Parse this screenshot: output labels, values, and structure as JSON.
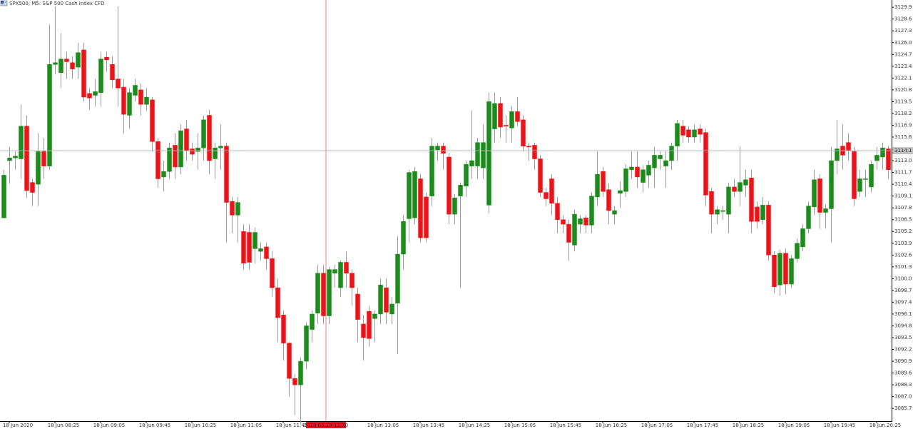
{
  "chart_data": {
    "type": "candlestick",
    "title": "SPX500, M5:  S&P 500 Cash Index CFD",
    "up_color": "#1e8a1e",
    "down_color": "#e8161b",
    "ylim": [
      3084.3,
      3130.7
    ],
    "yticks": [
      3129.9,
      3128.6,
      3127.3,
      {
        "value": 3126,
        "label": "3126.0"
      },
      3124.7,
      3123.4,
      3122.1,
      3120.8,
      3119.5,
      3118.2,
      3116.9,
      3115.6,
      {
        "value": 3113,
        "label": "3113.0"
      },
      3111.7,
      3110.4,
      3109.1,
      3107.8,
      3106.5,
      3105.2,
      3103.9,
      3102.6,
      3101.3,
      {
        "value": 3100,
        "label": "3100.0"
      },
      3098.7,
      3097.4,
      3096.1,
      3094.8,
      3093.5,
      3092.2,
      3090.9,
      3089.6,
      3088.3,
      {
        "value": 3087,
        "label": "3087.0"
      },
      3085.7
    ],
    "xticks": [
      {
        "value": 1,
        "label": "18 Jun 2020"
      },
      {
        "value": 9,
        "label": "18 Jun 08:25"
      },
      {
        "value": 17,
        "label": "18 Jun 09:05"
      },
      {
        "value": 25,
        "label": "18 Jun 09:45"
      },
      {
        "value": 33,
        "label": "18 Jun 10:25"
      },
      {
        "value": 41,
        "label": "18 Jun 11:05"
      },
      {
        "value": 49,
        "label": "18 Jun 11:45"
      },
      {
        "value": 65,
        "label": "18 Jun 13:05"
      },
      {
        "value": 73,
        "label": "18 Jun 13:45"
      },
      {
        "value": 81,
        "label": "18 Jun 14:25"
      },
      {
        "value": 89,
        "label": "18 Jun 15:05"
      },
      {
        "value": 97,
        "label": "18 Jun 15:45"
      },
      {
        "value": 105,
        "label": "18 Jun 16:25"
      },
      {
        "value": 113,
        "label": "18 Jun 17:05"
      },
      {
        "value": 121,
        "label": "18 Jun 17:45"
      },
      {
        "value": 129,
        "label": "18 Jun 18:25"
      },
      {
        "value": 137,
        "label": "18 Jun 19:05"
      },
      {
        "value": 145,
        "label": "18 Jun 19:45"
      },
      {
        "value": 153,
        "label": "18 Jun 20:25"
      }
    ],
    "current_price": 3114.1,
    "crosshair": {
      "value": 56.5,
      "label": "2020.06.18 12:20"
    },
    "ohlc": [
      [
        3106.7,
        3112.0,
        3106.7,
        3111.4
      ],
      [
        3113.0,
        3114.5,
        3110.5,
        3113.3
      ],
      [
        3113.3,
        3114.0,
        3112.0,
        3113.5
      ],
      [
        3113.2,
        3119.2,
        3111.0,
        3116.8
      ],
      [
        3116.8,
        3118.0,
        3108.9,
        3109.7
      ],
      [
        3110.6,
        3111.0,
        3108.0,
        3109.5
      ],
      [
        3110.4,
        3116.0,
        3108.0,
        3114.0
      ],
      [
        3114.0,
        3115.5,
        3111.0,
        3112.4
      ],
      [
        3112.4,
        3128.0,
        3112.0,
        3123.6
      ],
      [
        3123.6,
        3130.0,
        3122.5,
        3123.8
      ],
      [
        3122.7,
        3127.0,
        3121.0,
        3124.2
      ],
      [
        3124.2,
        3125.0,
        3122.0,
        3123.9
      ],
      [
        3123.8,
        3124.5,
        3122.0,
        3123.1
      ],
      [
        3123.3,
        3126.0,
        3122.0,
        3124.9
      ],
      [
        3125.2,
        3126.0,
        3119.5,
        3120.0
      ],
      [
        3120.4,
        3121.0,
        3118.6,
        3119.9
      ],
      [
        3120.2,
        3122.0,
        3119.0,
        3120.6
      ],
      [
        3120.5,
        3125.0,
        3119.0,
        3124.2
      ],
      [
        3124.4,
        3125.0,
        3122.8,
        3124.1
      ],
      [
        3123.6,
        3124.5,
        3121.0,
        3121.9
      ],
      [
        3122.0,
        3130.0,
        3119.0,
        3121.0
      ],
      [
        3121.1,
        3122.0,
        3116.0,
        3118.1
      ],
      [
        3118.0,
        3121.0,
        3116.5,
        3120.5
      ],
      [
        3120.2,
        3122.0,
        3119.5,
        3121.3
      ],
      [
        3120.8,
        3121.5,
        3118.0,
        3119.2
      ],
      [
        3119.2,
        3121.0,
        3118.5,
        3120.0
      ],
      [
        3119.7,
        3120.0,
        3114.0,
        3115.1
      ],
      [
        3115.1,
        3115.5,
        3110.0,
        3111.0
      ],
      [
        3111.2,
        3113.0,
        3109.6,
        3111.8
      ],
      [
        3111.8,
        3115.0,
        3111.0,
        3114.4
      ],
      [
        3114.7,
        3116.0,
        3111.0,
        3112.3
      ],
      [
        3112.3,
        3117.0,
        3111.5,
        3116.3
      ],
      [
        3116.5,
        3117.5,
        3113.0,
        3114.1
      ],
      [
        3114.3,
        3115.0,
        3113.0,
        3113.7
      ],
      [
        3114.0,
        3116.0,
        3112.0,
        3114.4
      ],
      [
        3114.4,
        3118.0,
        3113.0,
        3117.5
      ],
      [
        3118.0,
        3118.6,
        3111.5,
        3113.0
      ],
      [
        3113.2,
        3115.0,
        3111.0,
        3114.4
      ],
      [
        3114.4,
        3117.0,
        3112.0,
        3114.6
      ],
      [
        3114.6,
        3115.0,
        3104.0,
        3108.4
      ],
      [
        3108.5,
        3109.0,
        3105.0,
        3107.0
      ],
      [
        3107.0,
        3109.0,
        3104.0,
        3108.4
      ],
      [
        3105.2,
        3106.0,
        3101.0,
        3101.7
      ],
      [
        3105.1,
        3106.0,
        3101.0,
        3101.8
      ],
      [
        3103.3,
        3105.6,
        3101.7,
        3105.1
      ],
      [
        3103.0,
        3104.0,
        3102.0,
        3103.3
      ],
      [
        3103.5,
        3104.0,
        3101.0,
        3102.2
      ],
      [
        3102.2,
        3103.0,
        3098.0,
        3099.0
      ],
      [
        3099.0,
        3100.0,
        3093.0,
        3095.7
      ],
      [
        3096.0,
        3096.5,
        3091.0,
        3092.9
      ],
      [
        3092.9,
        3093.0,
        3087.0,
        3089.0
      ],
      [
        3089.0,
        3089.5,
        3085.0,
        3088.3
      ],
      [
        3088.3,
        3091.3,
        3084.0,
        3090.9
      ],
      [
        3090.9,
        3095.2,
        3090.0,
        3094.8
      ],
      [
        3094.4,
        3096.5,
        3093.0,
        3096.1
      ],
      [
        3096.2,
        3101.5,
        3095.0,
        3100.6
      ],
      [
        3100.6,
        3101.5,
        3095.0,
        3095.9
      ],
      [
        3095.9,
        3101.3,
        3095.0,
        3101.0
      ],
      [
        3100.6,
        3101.5,
        3099.0,
        3101.0
      ],
      [
        3099.0,
        3102.0,
        3098.0,
        3101.8
      ],
      [
        3101.8,
        3103.0,
        3099.0,
        3100.6
      ],
      [
        3100.6,
        3101.0,
        3097.0,
        3099.0
      ],
      [
        3098.3,
        3099.0,
        3093.0,
        3095.5
      ],
      [
        3095.0,
        3096.0,
        3091.0,
        3093.5
      ],
      [
        3096.4,
        3097.0,
        3092.5,
        3093.4
      ],
      [
        3095.6,
        3096.5,
        3093.0,
        3096.1
      ],
      [
        3096.1,
        3100.0,
        3095.0,
        3099.3
      ],
      [
        3099.0,
        3100.0,
        3095.0,
        3096.3
      ],
      [
        3096.1,
        3098.0,
        3095.0,
        3097.2
      ],
      [
        3097.3,
        3104.7,
        3091.7,
        3102.7
      ],
      [
        3102.7,
        3107.0,
        3101.0,
        3106.3
      ],
      [
        3106.6,
        3112.0,
        3104.0,
        3111.7
      ],
      [
        3106.7,
        3112.3,
        3106.0,
        3111.8
      ],
      [
        3111.0,
        3111.5,
        3104.0,
        3104.5
      ],
      [
        3109.0,
        3109.5,
        3104.0,
        3104.5
      ],
      [
        3109.1,
        3115.5,
        3108.0,
        3114.6
      ],
      [
        3114.2,
        3115.0,
        3113.0,
        3114.6
      ],
      [
        3114.6,
        3115.0,
        3112.0,
        3113.8
      ],
      [
        3113.4,
        3113.8,
        3106.0,
        3107.1
      ],
      [
        3107.1,
        3109.3,
        3106.0,
        3108.9
      ],
      [
        3109.1,
        3110.6,
        3099.0,
        3110.3
      ],
      [
        3110.2,
        3113.0,
        3109.0,
        3112.6
      ],
      [
        3112.4,
        3118.5,
        3111.0,
        3113.0
      ],
      [
        3112.4,
        3115.5,
        3111.0,
        3115.0
      ],
      [
        3112.2,
        3117.0,
        3111.0,
        3115.0
      ],
      [
        3108.1,
        3120.5,
        3107.2,
        3119.5
      ],
      [
        3116.5,
        3120.5,
        3115.0,
        3119.3
      ],
      [
        3119.3,
        3120.0,
        3115.5,
        3116.7
      ],
      [
        3116.9,
        3118.0,
        3115.0,
        3116.8
      ],
      [
        3116.6,
        3119.0,
        3115.0,
        3118.4
      ],
      [
        3118.4,
        3120.0,
        3116.8,
        3117.3
      ],
      [
        3117.5,
        3118.0,
        3114.0,
        3114.6
      ],
      [
        3114.6,
        3115.0,
        3113.0,
        3114.5
      ],
      [
        3114.7,
        3115.0,
        3112.0,
        3113.2
      ],
      [
        3113.2,
        3113.6,
        3109.0,
        3109.5
      ],
      [
        3109.5,
        3110.0,
        3108.0,
        3108.8
      ],
      [
        3111.0,
        3111.5,
        3107.0,
        3108.3
      ],
      [
        3108.3,
        3109.0,
        3105.0,
        3106.5
      ],
      [
        3106.5,
        3107.0,
        3105.0,
        3106.0
      ],
      [
        3106.0,
        3106.5,
        3102.0,
        3104.0
      ],
      [
        3103.7,
        3107.6,
        3103.0,
        3107.1
      ],
      [
        3106.0,
        3107.0,
        3105.0,
        3106.6
      ],
      [
        3106.7,
        3107.0,
        3105.0,
        3105.9
      ],
      [
        3105.9,
        3109.5,
        3105.0,
        3109.1
      ],
      [
        3109.0,
        3114.0,
        3108.0,
        3111.5
      ],
      [
        3111.8,
        3112.3,
        3109.0,
        3109.6
      ],
      [
        3109.8,
        3110.5,
        3106.0,
        3107.5
      ],
      [
        3107.1,
        3108.0,
        3106.0,
        3107.5
      ],
      [
        3109.4,
        3110.7,
        3107.8,
        3109.7
      ],
      [
        3109.6,
        3112.6,
        3109.0,
        3112.1
      ],
      [
        3112.0,
        3114.0,
        3111.0,
        3112.3
      ],
      [
        3112.3,
        3114.0,
        3110.0,
        3111.2
      ],
      [
        3110.6,
        3112.5,
        3109.5,
        3112.0
      ],
      [
        3111.4,
        3113.0,
        3110.0,
        3112.5
      ],
      [
        3112.2,
        3114.5,
        3110.0,
        3113.6
      ],
      [
        3113.2,
        3114.0,
        3112.0,
        3113.6
      ],
      [
        3112.4,
        3114.0,
        3110.0,
        3113.0
      ],
      [
        3113.0,
        3115.0,
        3112.0,
        3114.6
      ],
      [
        3114.6,
        3117.5,
        3113.0,
        3117.1
      ],
      [
        3116.8,
        3117.5,
        3115.0,
        3115.8
      ],
      [
        3116.4,
        3116.8,
        3115.0,
        3115.6
      ],
      [
        3115.6,
        3117.0,
        3115.0,
        3116.4
      ],
      [
        3116.5,
        3117.0,
        3115.0,
        3115.9
      ],
      [
        3116.1,
        3116.5,
        3108.0,
        3109.2
      ],
      [
        3109.6,
        3110.0,
        3105.0,
        3107.1
      ],
      [
        3107.1,
        3108.0,
        3106.0,
        3107.6
      ],
      [
        3107.4,
        3108.0,
        3106.5,
        3107.5
      ],
      [
        3107.1,
        3110.6,
        3105.0,
        3110.1
      ],
      [
        3110.1,
        3111.0,
        3109.0,
        3109.6
      ],
      [
        3109.6,
        3114.6,
        3108.0,
        3110.6
      ],
      [
        3110.3,
        3112.0,
        3109.0,
        3110.9
      ],
      [
        3111.1,
        3112.0,
        3105.0,
        3106.3
      ],
      [
        3107.9,
        3108.5,
        3105.5,
        3106.3
      ],
      [
        3106.5,
        3109.0,
        3106.0,
        3108.1
      ],
      [
        3108.1,
        3108.5,
        3102.0,
        3102.6
      ],
      [
        3102.6,
        3103.0,
        3098.4,
        3099.1
      ],
      [
        3099.3,
        3103.2,
        3098.1,
        3102.8
      ],
      [
        3102.8,
        3103.3,
        3098.3,
        3099.4
      ],
      [
        3099.4,
        3102.6,
        3099.0,
        3102.2
      ],
      [
        3102.2,
        3104.4,
        3101.8,
        3103.9
      ],
      [
        3103.5,
        3106.0,
        3103.0,
        3105.5
      ],
      [
        3105.5,
        3108.5,
        3105.0,
        3108.0
      ],
      [
        3107.9,
        3112.0,
        3107.0,
        3110.9
      ],
      [
        3111.0,
        3111.5,
        3105.5,
        3107.3
      ],
      [
        3107.3,
        3108.2,
        3105.5,
        3107.7
      ],
      [
        3107.7,
        3114.5,
        3104.0,
        3113.0
      ],
      [
        3113.0,
        3117.5,
        3111.5,
        3114.3
      ],
      [
        3114.6,
        3117.0,
        3112.0,
        3113.6
      ],
      [
        3115.0,
        3116.0,
        3113.0,
        3114.1
      ],
      [
        3114.0,
        3114.5,
        3108.0,
        3108.8
      ],
      [
        3109.6,
        3112.0,
        3109.0,
        3111.0
      ],
      [
        3111.0,
        3112.0,
        3109.0,
        3111.0
      ],
      [
        3110.1,
        3113.0,
        3109.5,
        3112.6
      ],
      [
        3113.0,
        3114.5,
        3112.0,
        3113.6
      ],
      [
        3113.4,
        3115.0,
        3112.0,
        3114.4
      ],
      [
        3114.3,
        3114.6,
        3111.0,
        3112.0
      ]
    ]
  }
}
